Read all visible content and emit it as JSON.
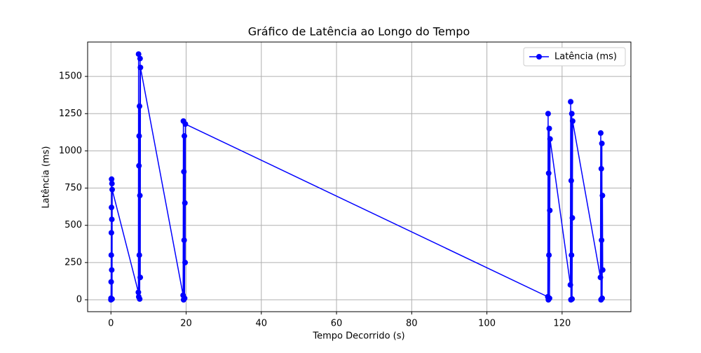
{
  "chart_data": {
    "type": "line",
    "title": "Gráfico de Latência ao Longo do Tempo",
    "x_label": "Tempo Decorrido (s)",
    "y_label": "Latência (ms)",
    "x": [
      0.0,
      0.03,
      0.06,
      0.09,
      0.12,
      0.15,
      0.18,
      0.21,
      0.24,
      0.27,
      0.3,
      0.33,
      7.3,
      7.35,
      7.4,
      7.45,
      7.5,
      7.55,
      7.6,
      7.65,
      7.7,
      7.75,
      7.8,
      7.85,
      19.2,
      19.27,
      19.33,
      19.4,
      19.47,
      19.53,
      19.6,
      19.67,
      19.73,
      19.8,
      116.2,
      116.28,
      116.35,
      116.43,
      116.5,
      116.58,
      116.65,
      116.73,
      116.8,
      122.2,
      122.28,
      122.35,
      122.43,
      122.5,
      122.58,
      122.65,
      122.73,
      122.8,
      130.2,
      130.28,
      130.35,
      130.43,
      130.5,
      130.58,
      130.65,
      130.73,
      130.8
    ],
    "series": [
      {
        "name": "Latência (ms)",
        "color": "#0000ff",
        "values": [
          0,
          10,
          120,
          300,
          450,
          620,
          810,
          200,
          540,
          780,
          5,
          740,
          50,
          1650,
          20,
          900,
          1100,
          300,
          1300,
          5,
          700,
          1620,
          150,
          1560,
          30,
          1200,
          0,
          860,
          400,
          1100,
          10,
          650,
          250,
          1180,
          20,
          1250,
          0,
          850,
          300,
          1150,
          10,
          600,
          1080,
          100,
          1330,
          0,
          800,
          300,
          1250,
          5,
          550,
          1200,
          150,
          1120,
          0,
          880,
          400,
          1050,
          10,
          700,
          200
        ]
      }
    ],
    "xlim": [
      -6.2,
      138.3
    ],
    "ylim": [
      -80,
      1731
    ],
    "xticks": [
      0,
      20,
      40,
      60,
      80,
      100,
      120
    ],
    "yticks": [
      0,
      250,
      500,
      750,
      1000,
      1250,
      1500
    ],
    "grid": true,
    "legend": "upper right"
  }
}
